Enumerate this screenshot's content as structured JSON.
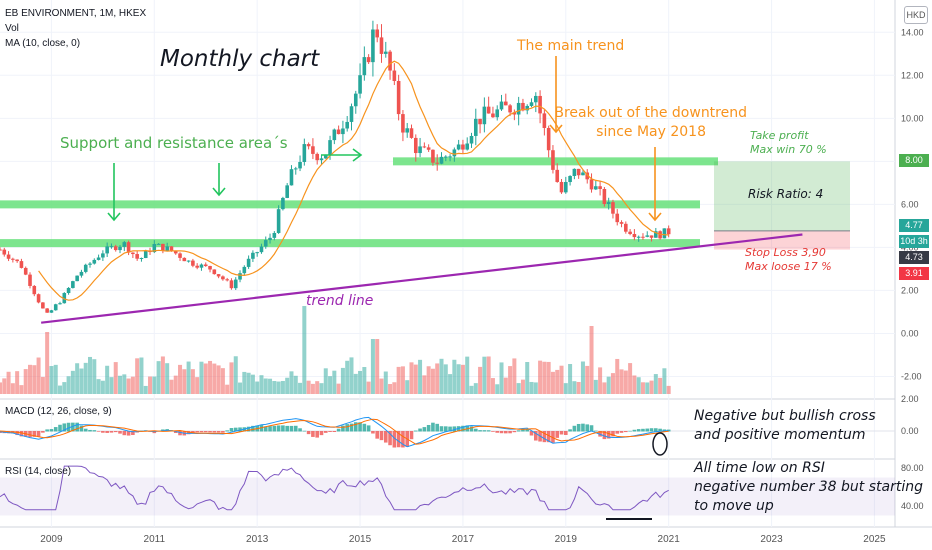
{
  "header": {
    "symbol_line": "EB ENVIRONMENT, 1M, HKEX",
    "vol_label": "Vol",
    "ma_label": "MA (10, close, 0)",
    "currency": "HKD"
  },
  "price_axis": {
    "ticks": [
      "14.00",
      "12.00",
      "10.00",
      "8.00",
      "6.00",
      "4.00",
      "2.00",
      "0.00",
      "-2.00"
    ]
  },
  "macd_axis": {
    "ticks": [
      "2.00",
      "0.00"
    ]
  },
  "rsi_axis": {
    "ticks": [
      "80.00",
      "40.00"
    ]
  },
  "price_tags": [
    {
      "value": "8.00",
      "bg": "#4caf50",
      "fg": "#ffffff"
    },
    {
      "value": "4.77",
      "bg": "#26a69a",
      "fg": "#ffffff"
    },
    {
      "value": "10d 3h",
      "bg": "#26a69a",
      "fg": "#ffffff"
    },
    {
      "value": "4.73",
      "bg": "#363a45",
      "fg": "#ffffff"
    },
    {
      "value": "3.91",
      "bg": "#f23645",
      "fg": "#ffffff"
    }
  ],
  "macd_label": "MACD (12, 26, close, 9)",
  "rsi_label": "RSI (14, close)",
  "annotations": {
    "monthly": "Monthly chart",
    "sr": "Support and resistance area´s",
    "main_trend": "The main trend",
    "breakout_1": "Break out of the downtrend",
    "breakout_2": "since May 2018",
    "tp_1": "Take profit",
    "tp_2": "Max win 70 %",
    "risk_ratio": "Risk Ratio: 4",
    "sl_1": "Stop Loss 3,90",
    "sl_2": "Max loose 17 %",
    "trend_line": "trend line",
    "macd_1": "Negative but bullish cross",
    "macd_2": "and positive momentum",
    "rsi_1": "All time low on RSI",
    "rsi_2": "negative number 38 but starting",
    "rsi_3": "to move up"
  },
  "colors": {
    "up": "#26a69a",
    "down": "#ef5350",
    "ma": "#f7931e",
    "zone": "#66e07a",
    "trendline": "#9c27b0",
    "green_text": "#4caf50",
    "orange_text": "#f7931e",
    "red_text": "#e53935",
    "macd_line": "#2196f3",
    "signal_line": "#ff6d00",
    "rsi_line": "#7e57c2"
  },
  "chart_data": [
    {
      "type": "candlestick",
      "title": "EB ENVIRONMENT, 1M, HKEX",
      "x_ticks": [
        "2009",
        "2011",
        "2013",
        "2015",
        "2017",
        "2019",
        "2021",
        "2023",
        "2025"
      ],
      "x_range": [
        2008.0,
        2025.4
      ],
      "y_range": [
        -3.0,
        15.5
      ],
      "grid": true,
      "support_resistance_zones": [
        8.0,
        6.0,
        4.2
      ],
      "trend_line": {
        "from": [
          2008.8,
          0.5
        ],
        "to": [
          2023.6,
          4.6
        ]
      },
      "position": {
        "entry": 4.77,
        "take_profit": 8.0,
        "stop_loss": 3.9
      },
      "ma_period": 10,
      "monthly_close_keypoints": [
        [
          2008.0,
          3.9
        ],
        [
          2008.4,
          3.2
        ],
        [
          2008.9,
          0.8
        ],
        [
          2009.2,
          1.6
        ],
        [
          2009.5,
          2.7
        ],
        [
          2010.0,
          3.8
        ],
        [
          2010.4,
          4.2
        ],
        [
          2010.7,
          3.4
        ],
        [
          2011.0,
          4.1
        ],
        [
          2011.3,
          3.9
        ],
        [
          2011.7,
          3.3
        ],
        [
          2012.1,
          3.0
        ],
        [
          2012.5,
          2.2
        ],
        [
          2012.8,
          3.3
        ],
        [
          2013.0,
          3.8
        ],
        [
          2013.3,
          4.6
        ],
        [
          2013.6,
          7.0
        ],
        [
          2013.9,
          8.5
        ],
        [
          2014.3,
          8.3
        ],
        [
          2014.7,
          10.0
        ],
        [
          2015.0,
          11.6
        ],
        [
          2015.3,
          14.3
        ],
        [
          2015.6,
          12.0
        ],
        [
          2015.8,
          9.8
        ],
        [
          2016.1,
          8.6
        ],
        [
          2016.5,
          8.0
        ],
        [
          2016.9,
          8.6
        ],
        [
          2017.3,
          10.0
        ],
        [
          2017.8,
          10.4
        ],
        [
          2018.2,
          10.8
        ],
        [
          2018.4,
          11.3
        ],
        [
          2018.7,
          8.2
        ],
        [
          2018.9,
          6.5
        ],
        [
          2019.2,
          7.6
        ],
        [
          2019.5,
          7.0
        ],
        [
          2019.8,
          6.0
        ],
        [
          2020.1,
          5.0
        ],
        [
          2020.4,
          4.6
        ],
        [
          2020.8,
          4.6
        ],
        [
          2021.0,
          4.73
        ]
      ]
    },
    {
      "type": "bar",
      "title": "Vol",
      "note": "monthly volume histogram, colored by candle direction"
    },
    {
      "type": "line",
      "title": "MACD (12, 26, close, 9)",
      "y_ticks": [
        2.0,
        0.0
      ],
      "series": [
        {
          "name": "MACD"
        },
        {
          "name": "Signal"
        },
        {
          "name": "Histogram"
        }
      ]
    },
    {
      "type": "line",
      "title": "RSI (14, close)",
      "y_ticks": [
        80,
        40
      ],
      "band": [
        30,
        70
      ],
      "latest_low": 38
    }
  ]
}
